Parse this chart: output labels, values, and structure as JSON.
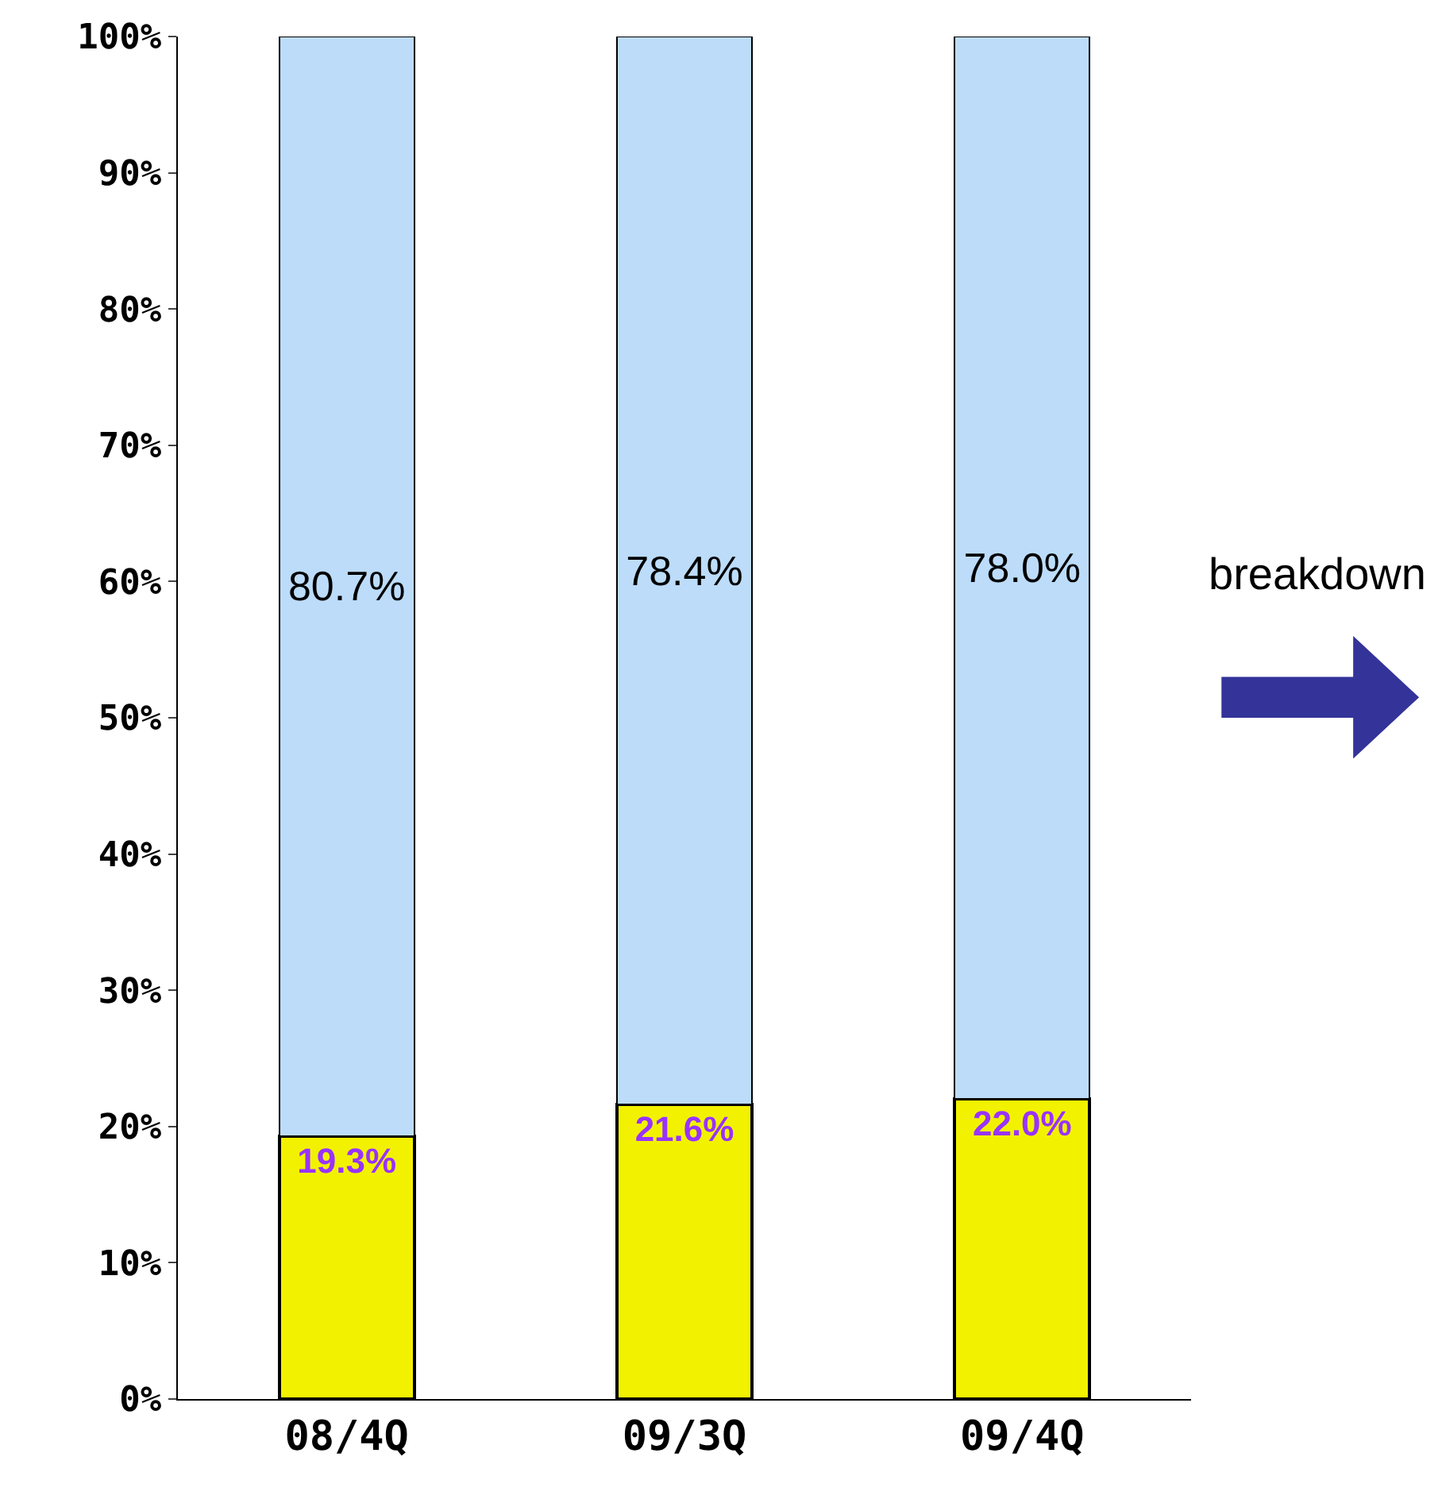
{
  "chart_data": {
    "type": "bar",
    "stacked": true,
    "categories": [
      "08/4Q",
      "09/3Q",
      "09/4Q"
    ],
    "series": [
      {
        "color": "#f2f200",
        "values": [
          19.3,
          21.6,
          22.0
        ],
        "value_labels": [
          "19.3%",
          "21.6%",
          "22.0%"
        ]
      },
      {
        "color": "#bcdcfa",
        "values": [
          80.7,
          78.4,
          78.0
        ],
        "value_labels": [
          "80.7%",
          "78.4%",
          "78.0%"
        ]
      }
    ],
    "ylim": [
      0,
      100
    ],
    "yticks": [
      {
        "value": 0,
        "label": "0%"
      },
      {
        "value": 10,
        "label": "10%"
      },
      {
        "value": 20,
        "label": "20%"
      },
      {
        "value": 30,
        "label": "30%"
      },
      {
        "value": 40,
        "label": "40%"
      },
      {
        "value": 50,
        "label": "50%"
      },
      {
        "value": 60,
        "label": "60%"
      },
      {
        "value": 70,
        "label": "70%"
      },
      {
        "value": 80,
        "label": "80%"
      },
      {
        "value": 90,
        "label": "90%"
      },
      {
        "value": 100,
        "label": "100%"
      }
    ],
    "annotations": [
      "breakdown"
    ],
    "ylabel": null
  }
}
